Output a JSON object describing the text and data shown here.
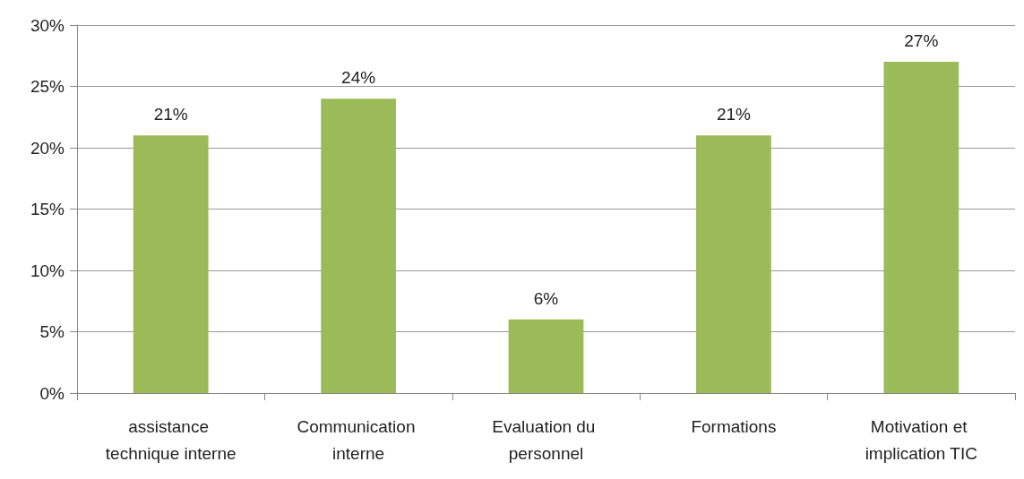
{
  "chart_data": {
    "type": "bar",
    "categories": [
      "assistance technique interne",
      "Communication interne",
      "Evaluation du personnel",
      "Formations",
      "Motivation et implication TIC"
    ],
    "values": [
      21,
      24,
      6,
      21,
      27
    ],
    "value_labels": [
      "21%",
      "24%",
      "6%",
      "21%",
      "27%"
    ],
    "color": "#9bbb59",
    "ylim": [
      0,
      30
    ],
    "yticks": [
      {
        "value": 0,
        "label": "0%"
      },
      {
        "value": 5,
        "label": "5%"
      },
      {
        "value": 10,
        "label": "10%"
      },
      {
        "value": 15,
        "label": "15%"
      },
      {
        "value": 20,
        "label": "20%"
      },
      {
        "value": 25,
        "label": "25%"
      },
      {
        "value": 30,
        "label": "30%"
      }
    ],
    "grid": "y"
  }
}
